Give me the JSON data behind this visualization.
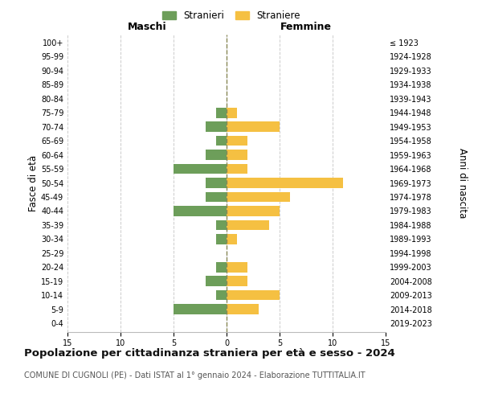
{
  "age_groups": [
    "0-4",
    "5-9",
    "10-14",
    "15-19",
    "20-24",
    "25-29",
    "30-34",
    "35-39",
    "40-44",
    "45-49",
    "50-54",
    "55-59",
    "60-64",
    "65-69",
    "70-74",
    "75-79",
    "80-84",
    "85-89",
    "90-94",
    "95-99",
    "100+"
  ],
  "birth_years": [
    "2019-2023",
    "2014-2018",
    "2009-2013",
    "2004-2008",
    "1999-2003",
    "1994-1998",
    "1989-1993",
    "1984-1988",
    "1979-1983",
    "1974-1978",
    "1969-1973",
    "1964-1968",
    "1959-1963",
    "1954-1958",
    "1949-1953",
    "1944-1948",
    "1939-1943",
    "1934-1938",
    "1929-1933",
    "1924-1928",
    "≤ 1923"
  ],
  "males": [
    0,
    5,
    1,
    2,
    1,
    0,
    1,
    1,
    5,
    2,
    2,
    5,
    2,
    1,
    2,
    1,
    0,
    0,
    0,
    0,
    0
  ],
  "females": [
    0,
    3,
    5,
    2,
    2,
    0,
    1,
    4,
    5,
    6,
    11,
    2,
    2,
    2,
    5,
    1,
    0,
    0,
    0,
    0,
    0
  ],
  "male_color": "#6d9e5a",
  "female_color": "#f5c042",
  "center_line_color": "#888855",
  "grid_color": "#cccccc",
  "background_color": "#ffffff",
  "title": "Popolazione per cittadinanza straniera per età e sesso - 2024",
  "subtitle": "COMUNE DI CUGNOLI (PE) - Dati ISTAT al 1° gennaio 2024 - Elaborazione TUTTITALIA.IT",
  "header_left": "Maschi",
  "header_right": "Femmine",
  "ylabel_left": "Fasce di età",
  "ylabel_right": "Anni di nascita",
  "legend_male": "Stranieri",
  "legend_female": "Straniere",
  "xlim": 15,
  "bar_height": 0.72,
  "title_fontsize": 9.5,
  "subtitle_fontsize": 7.0,
  "tick_fontsize": 7.0,
  "label_fontsize": 8.5,
  "header_fontsize": 9.0
}
